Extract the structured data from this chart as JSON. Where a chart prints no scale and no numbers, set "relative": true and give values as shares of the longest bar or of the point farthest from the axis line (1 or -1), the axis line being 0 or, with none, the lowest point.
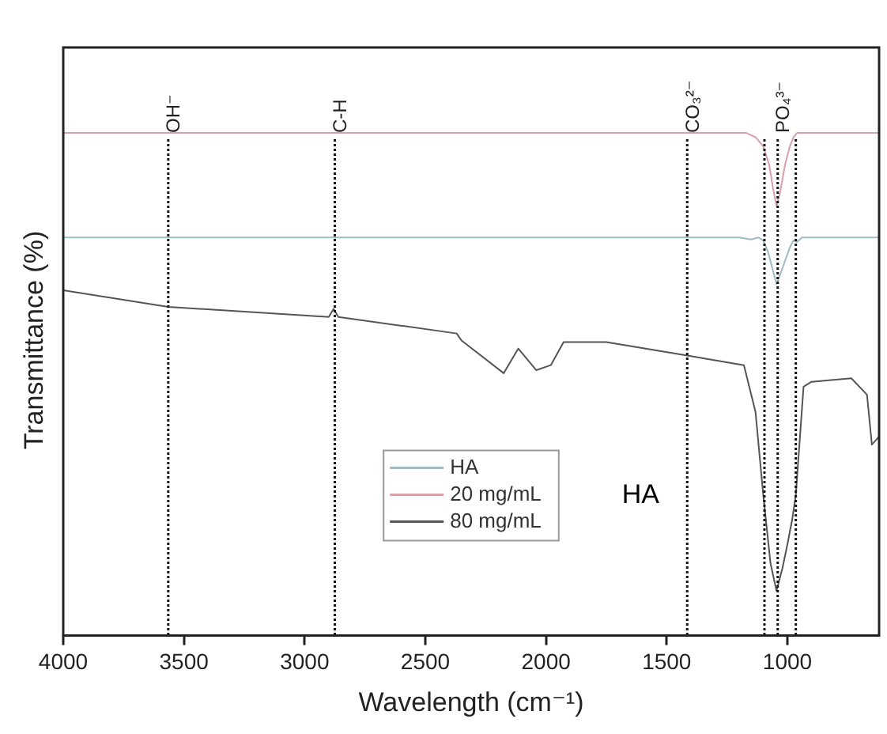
{
  "chart_data": {
    "type": "line",
    "relative": true,
    "xlabel": "Wavelength (cm⁻¹)",
    "ylabel": "Transmittance (%)",
    "xlim": [
      4000,
      620
    ],
    "xticks": [
      4000,
      3500,
      3000,
      2500,
      2000,
      1500,
      1000
    ],
    "grid": false,
    "legend": "bottom",
    "marker": "none",
    "line_style": "solid",
    "annotations": [
      "HA"
    ],
    "ref_lines": [
      {
        "axis": "x",
        "value": 3565,
        "label": "OH⁻",
        "line_style": "dotted",
        "color": "#111111"
      },
      {
        "axis": "x",
        "value": 2875,
        "label": "C-H",
        "line_style": "dotted",
        "color": "#111111"
      },
      {
        "axis": "x",
        "value": 1415,
        "label": "CO₃²⁻",
        "line_style": "dotted",
        "color": "#111111"
      },
      {
        "axis": "x",
        "value": 1095,
        "label": null,
        "line_style": "dotted",
        "color": "#111111"
      },
      {
        "axis": "x",
        "value": 1040,
        "label": "PO₄³⁻",
        "line_style": "dotted",
        "color": "#111111"
      },
      {
        "axis": "x",
        "value": 965,
        "label": null,
        "line_style": "dotted",
        "color": "#111111"
      }
    ],
    "series": [
      {
        "name": "HA",
        "color": "#9fbcc4",
        "x": [
          4000,
          1200,
          1150,
          1120,
          1100,
          1080,
          1060,
          1045,
          1030,
          1010,
          990,
          975,
          960,
          940,
          620
        ],
        "values": [
          0.792,
          0.792,
          0.788,
          0.792,
          0.786,
          0.763,
          0.727,
          0.699,
          0.718,
          0.745,
          0.772,
          0.786,
          0.783,
          0.792,
          0.792
        ]
      },
      {
        "name": "20 mg/mL",
        "color": "#d9a0a8",
        "x": [
          4000,
          1170,
          1130,
          1100,
          1075,
          1060,
          1045,
          1030,
          1010,
          990,
          975,
          960,
          620
        ],
        "values": [
          1,
          1,
          0.991,
          0.973,
          0.936,
          0.891,
          0.854,
          0.882,
          0.936,
          0.973,
          0.991,
          1,
          1
        ]
      },
      {
        "name": "80 mg/mL",
        "color": "#555555",
        "x": [
          4000,
          3565,
          2900,
          2880,
          2860,
          2370,
          2350,
          2175,
          2115,
          2040,
          1980,
          1927,
          1750,
          1415,
          1180,
          1132,
          1100,
          1070,
          1045,
          1020,
          1000,
          980,
          965,
          933,
          900,
          735,
          670,
          650,
          620
        ],
        "values": [
          0.687,
          0.654,
          0.634,
          0.65,
          0.634,
          0.601,
          0.587,
          0.522,
          0.571,
          0.528,
          0.538,
          0.584,
          0.584,
          0.557,
          0.538,
          0.445,
          0.28,
          0.144,
          0.089,
          0.135,
          0.181,
          0.231,
          0.28,
          0.495,
          0.505,
          0.512,
          0.479,
          0.38,
          0.396
        ]
      }
    ]
  }
}
